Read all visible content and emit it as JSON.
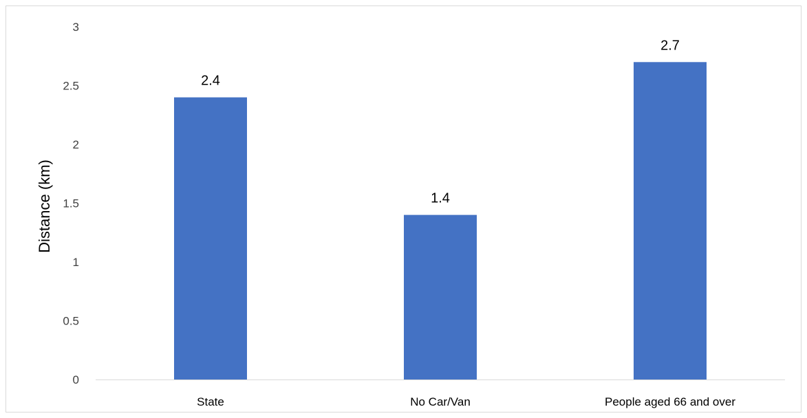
{
  "chart_data": {
    "type": "bar",
    "title": "",
    "xlabel": "",
    "ylabel": "Distance (km)",
    "categories": [
      "State",
      "No Car/Van",
      "People aged 66 and over"
    ],
    "values": [
      2.4,
      1.4,
      2.7
    ],
    "data_labels": [
      "2.4",
      "1.4",
      "2.7"
    ],
    "ylim": [
      0,
      3
    ],
    "y_ticks": [
      0,
      0.5,
      1,
      1.5,
      2,
      2.5,
      3
    ],
    "y_tick_labels": [
      "0",
      "0.5",
      "1",
      "1.5",
      "2",
      "2.5",
      "3"
    ],
    "grid": false,
    "legend": "none",
    "bar_color": "#4472C4",
    "axis_color": "#D9D9D9"
  }
}
